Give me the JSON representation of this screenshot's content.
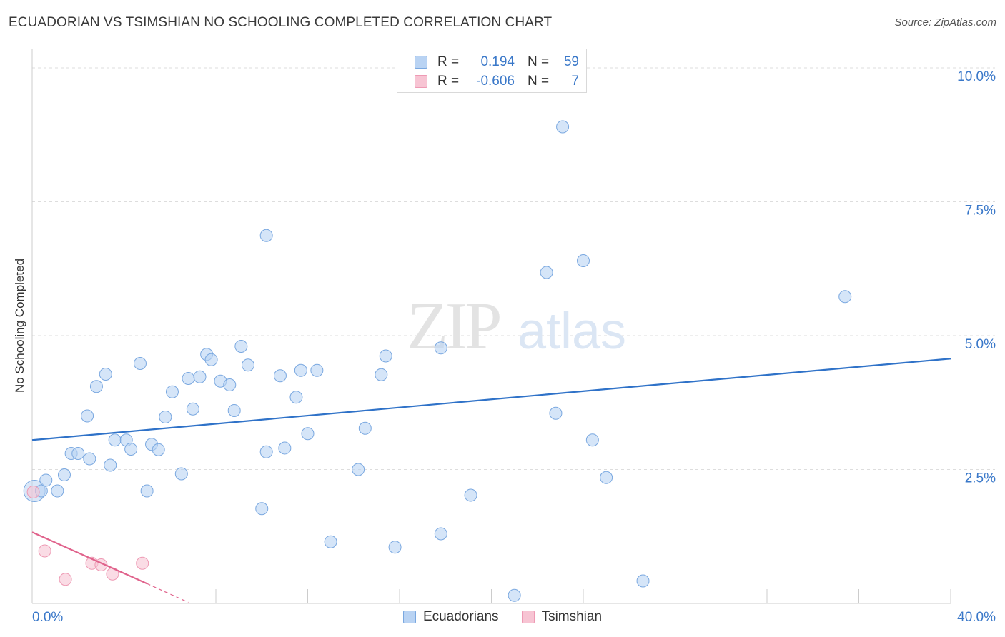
{
  "title": "ECUADORIAN VS TSIMSHIAN NO SCHOOLING COMPLETED CORRELATION CHART",
  "source": "Source: ZipAtlas.com",
  "watermark": {
    "zip": "ZIP",
    "atlas": "atlas"
  },
  "legend_stats": [
    {
      "r_label": "R =",
      "r_value": "0.194",
      "n_label": "N =",
      "n_value": "59"
    },
    {
      "r_label": "R =",
      "r_value": "-0.606",
      "n_label": "N =",
      "n_value": "7"
    }
  ],
  "legend_bottom": [
    "Ecuadorians",
    "Tsimshian"
  ],
  "colors": {
    "blue_fill": "#b9d3f3",
    "blue_stroke": "#7aa8e0",
    "blue_line": "#2f72c8",
    "pink_fill": "#f7c4d3",
    "pink_stroke": "#ee9ab4",
    "pink_line": "#e0638c",
    "tick_label": "#3a78c9",
    "grid": "#dddddd"
  },
  "chart_data": {
    "type": "scatter",
    "title": "ECUADORIAN VS TSIMSHIAN NO SCHOOLING COMPLETED CORRELATION CHART",
    "xlabel": "",
    "ylabel": "No Schooling Completed",
    "xlim": [
      0,
      40
    ],
    "ylim": [
      0,
      10.2
    ],
    "x_tick_labels": [
      {
        "value": 0,
        "label": "0.0%"
      },
      {
        "value": 40,
        "label": "40.0%"
      }
    ],
    "y_tick_labels": [
      {
        "value": 10,
        "label": "10.0%"
      },
      {
        "value": 7.5,
        "label": "7.5%"
      },
      {
        "value": 5,
        "label": "5.0%"
      },
      {
        "value": 2.5,
        "label": "2.5%"
      }
    ],
    "series": [
      {
        "name": "Ecuadorians",
        "r": 0.194,
        "n": 59,
        "trend": {
          "x0": 0,
          "y0": 3.05,
          "x1": 40,
          "y1": 4.57
        },
        "points": [
          [
            0.1,
            2.1
          ],
          [
            0.4,
            2.1
          ],
          [
            0.6,
            2.3
          ],
          [
            1.1,
            2.1
          ],
          [
            1.4,
            2.4
          ],
          [
            1.7,
            2.8
          ],
          [
            2.0,
            2.8
          ],
          [
            2.4,
            3.5
          ],
          [
            2.5,
            2.7
          ],
          [
            2.8,
            4.05
          ],
          [
            3.2,
            4.28
          ],
          [
            3.4,
            2.58
          ],
          [
            3.6,
            3.05
          ],
          [
            4.1,
            3.05
          ],
          [
            4.3,
            2.88
          ],
          [
            4.7,
            4.48
          ],
          [
            5.0,
            2.1
          ],
          [
            5.2,
            2.97
          ],
          [
            5.5,
            2.87
          ],
          [
            5.8,
            3.48
          ],
          [
            6.1,
            3.95
          ],
          [
            6.5,
            2.42
          ],
          [
            6.8,
            4.2
          ],
          [
            7.0,
            3.63
          ],
          [
            7.3,
            4.23
          ],
          [
            7.6,
            4.65
          ],
          [
            7.8,
            4.55
          ],
          [
            8.2,
            4.15
          ],
          [
            8.6,
            4.08
          ],
          [
            8.8,
            3.6
          ],
          [
            9.1,
            4.8
          ],
          [
            9.4,
            4.45
          ],
          [
            10.0,
            1.77
          ],
          [
            10.2,
            2.83
          ],
          [
            10.2,
            6.87
          ],
          [
            10.8,
            4.25
          ],
          [
            11.0,
            2.9
          ],
          [
            11.5,
            3.85
          ],
          [
            11.7,
            4.35
          ],
          [
            12.0,
            3.17
          ],
          [
            12.4,
            4.35
          ],
          [
            13.0,
            1.15
          ],
          [
            14.2,
            2.5
          ],
          [
            14.5,
            3.27
          ],
          [
            15.2,
            4.27
          ],
          [
            15.4,
            4.62
          ],
          [
            15.8,
            1.05
          ],
          [
            17.8,
            4.77
          ],
          [
            17.8,
            1.3
          ],
          [
            19.1,
            2.02
          ],
          [
            21.0,
            0.15
          ],
          [
            22.4,
            6.18
          ],
          [
            22.8,
            3.55
          ],
          [
            23.1,
            8.9
          ],
          [
            24.0,
            6.4
          ],
          [
            24.4,
            3.05
          ],
          [
            25.0,
            2.35
          ],
          [
            26.6,
            0.42
          ],
          [
            35.4,
            5.73
          ]
        ]
      },
      {
        "name": "Tsimshian",
        "r": -0.606,
        "n": 7,
        "trend": {
          "x0": 0,
          "y0": 1.33,
          "x1": 5,
          "y1": 0.37
        },
        "trend_dashed": {
          "x0": 5,
          "y0": 0.37,
          "x1": 6.8,
          "y1": 0.02
        },
        "points": [
          [
            0.05,
            2.08
          ],
          [
            0.55,
            0.98
          ],
          [
            1.45,
            0.45
          ],
          [
            2.6,
            0.75
          ],
          [
            3.0,
            0.72
          ],
          [
            3.5,
            0.55
          ],
          [
            4.8,
            0.75
          ]
        ]
      }
    ]
  }
}
